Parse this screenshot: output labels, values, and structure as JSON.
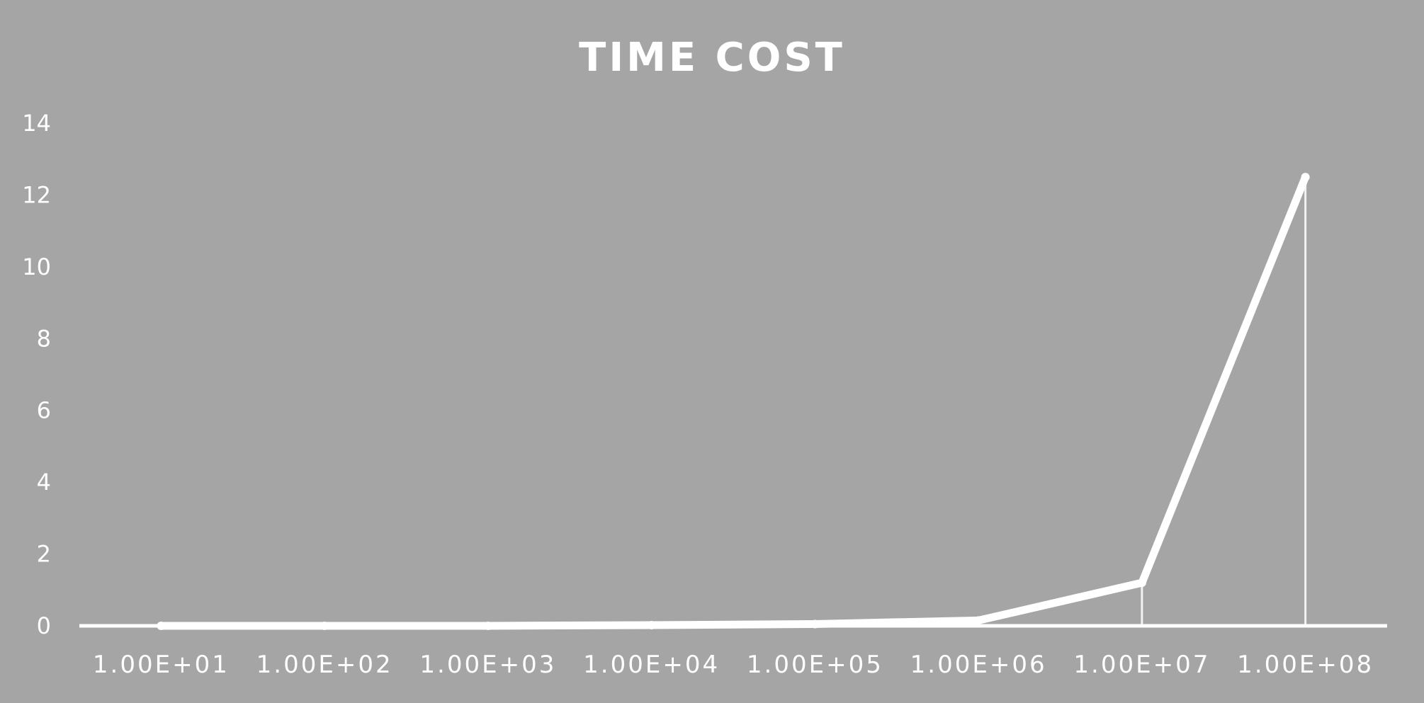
{
  "chart_data": {
    "type": "line",
    "title": "TIME COST",
    "xlabel": "",
    "ylabel": "",
    "categories": [
      "1.00E+01",
      "1.00E+02",
      "1.00E+03",
      "1.00E+04",
      "1.00E+05",
      "1.00E+06",
      "1.00E+07",
      "1.00E+08"
    ],
    "series": [
      {
        "values": [
          0.0,
          0.0,
          0.0,
          0.02,
          0.05,
          0.15,
          1.2,
          12.5
        ]
      }
    ],
    "ylim": [
      0,
      14
    ],
    "yticks": [
      0,
      2,
      4,
      6,
      8,
      10,
      12,
      14
    ],
    "grid": false,
    "legend": "none",
    "colors": {
      "background": "#a5a5a5",
      "line": "#ffffff",
      "text": "#ffffff"
    }
  }
}
